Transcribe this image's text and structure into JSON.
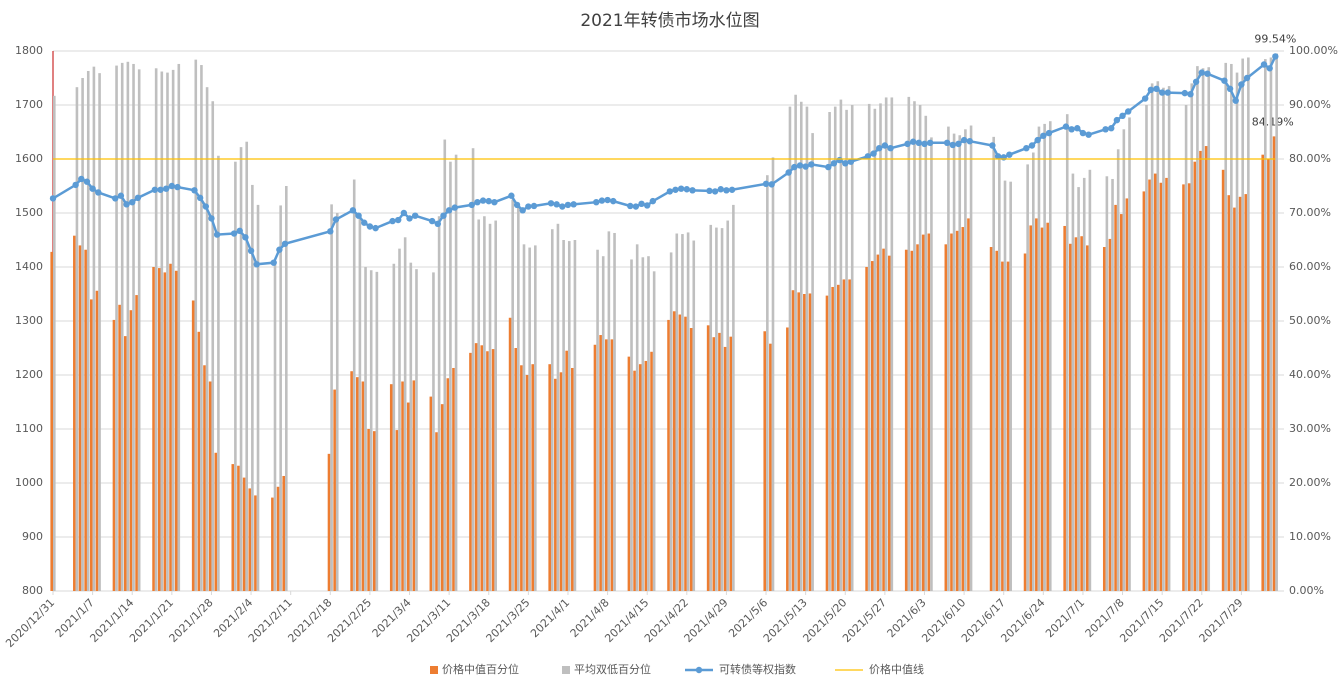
{
  "chart_data": {
    "type": "bar",
    "title": "2021年转债市场水位图",
    "x": [
      "2020/12/31",
      "2021/1/4",
      "2021/1/5",
      "2021/1/6",
      "2021/1/7",
      "2021/1/8",
      "2021/1/11",
      "2021/1/12",
      "2021/1/13",
      "2021/1/14",
      "2021/1/15",
      "2021/1/18",
      "2021/1/19",
      "2021/1/20",
      "2021/1/21",
      "2021/1/22",
      "2021/1/25",
      "2021/1/26",
      "2021/1/27",
      "2021/1/28",
      "2021/1/29",
      "2021/2/1",
      "2021/2/2",
      "2021/2/3",
      "2021/2/4",
      "2021/2/5",
      "2021/2/8",
      "2021/2/9",
      "2021/2/10",
      "2021/2/18",
      "2021/2/19",
      "2021/2/22",
      "2021/2/23",
      "2021/2/24",
      "2021/2/25",
      "2021/2/26",
      "2021/3/1",
      "2021/3/2",
      "2021/3/3",
      "2021/3/4",
      "2021/3/5",
      "2021/3/8",
      "2021/3/9",
      "2021/3/10",
      "2021/3/11",
      "2021/3/12",
      "2021/3/15",
      "2021/3/16",
      "2021/3/17",
      "2021/3/18",
      "2021/3/19",
      "2021/3/22",
      "2021/3/23",
      "2021/3/24",
      "2021/3/25",
      "2021/3/26",
      "2021/3/29",
      "2021/3/30",
      "2021/3/31",
      "2021/4/1",
      "2021/4/2",
      "2021/4/6",
      "2021/4/7",
      "2021/4/8",
      "2021/4/9",
      "2021/4/12",
      "2021/4/13",
      "2021/4/14",
      "2021/4/15",
      "2021/4/16",
      "2021/4/19",
      "2021/4/20",
      "2021/4/21",
      "2021/4/22",
      "2021/4/23",
      "2021/4/26",
      "2021/4/27",
      "2021/4/28",
      "2021/4/29",
      "2021/4/30",
      "2021/5/6",
      "2021/5/7",
      "2021/5/10",
      "2021/5/11",
      "2021/5/12",
      "2021/5/13",
      "2021/5/14",
      "2021/5/17",
      "2021/5/18",
      "2021/5/19",
      "2021/5/20",
      "2021/5/21",
      "2021/5/24",
      "2021/5/25",
      "2021/5/26",
      "2021/5/27",
      "2021/5/28",
      "2021/5/31",
      "2021/6/1",
      "2021/6/2",
      "2021/6/3",
      "2021/6/4",
      "2021/6/7",
      "2021/6/8",
      "2021/6/9",
      "2021/6/10",
      "2021/6/11",
      "2021/6/15",
      "2021/6/16",
      "2021/6/17",
      "2021/6/18",
      "2021/6/21",
      "2021/6/22",
      "2021/6/23",
      "2021/6/24",
      "2021/6/25",
      "2021/6/28",
      "2021/6/29",
      "2021/6/30",
      "2021/7/1",
      "2021/7/2",
      "2021/7/5",
      "2021/7/6",
      "2021/7/7",
      "2021/7/8",
      "2021/7/9",
      "2021/7/12",
      "2021/7/13",
      "2021/7/14",
      "2021/7/15",
      "2021/7/16",
      "2021/7/19",
      "2021/7/20",
      "2021/7/21",
      "2021/7/22",
      "2021/7/23",
      "2021/7/26",
      "2021/7/27",
      "2021/7/28",
      "2021/7/29",
      "2021/7/30",
      "2021/8/2",
      "2021/8/3",
      "2021/8/4"
    ],
    "xlim": [
      "2020/12/31",
      "2021/8/5"
    ],
    "xticks": [
      "2020/12/31",
      "2021/1/7",
      "2021/1/14",
      "2021/1/21",
      "2021/1/28",
      "2021/2/4",
      "2021/2/11",
      "2021/2/18",
      "2021/2/25",
      "2021/3/4",
      "2021/3/11",
      "2021/3/18",
      "2021/3/25",
      "2021/4/1",
      "2021/4/8",
      "2021/4/15",
      "2021/4/22",
      "2021/4/29",
      "2021/5/6",
      "2021/5/13",
      "2021/5/20",
      "2021/5/27",
      "2021/6/3",
      "2021/6/10",
      "2021/6/17",
      "2021/6/24",
      "2021/7/1",
      "2021/7/8",
      "2021/7/15",
      "2021/7/22",
      "2021/7/29"
    ],
    "ylim": [
      800,
      1800
    ],
    "yticks": [
      800,
      900,
      1000,
      1100,
      1200,
      1300,
      1400,
      1500,
      1600,
      1700,
      1800
    ],
    "y2lim": [
      0,
      100
    ],
    "y2ticks": [
      {
        "value": 0,
        "label": "0.00%"
      },
      {
        "value": 10,
        "label": "10.00%"
      },
      {
        "value": 20,
        "label": "20.00%"
      },
      {
        "value": 30,
        "label": "30.00%"
      },
      {
        "value": 40,
        "label": "40.00%"
      },
      {
        "value": 50,
        "label": "50.00%"
      },
      {
        "value": 60,
        "label": "60.00%"
      },
      {
        "value": 70,
        "label": "70.00%"
      },
      {
        "value": 80,
        "label": "80.00%"
      },
      {
        "value": 90,
        "label": "90.00%"
      },
      {
        "value": 100,
        "label": "100.00%"
      }
    ],
    "grid": true,
    "legend": "bottom",
    "series": [
      {
        "name": "价格中值百分位",
        "type": "bar",
        "axis": "y2",
        "color": "#ed7d31",
        "values": [
          62.8,
          65.8,
          64,
          63.2,
          54,
          55.6,
          50.2,
          53,
          47.2,
          52,
          54.8,
          60,
          59.8,
          59,
          60.6,
          59.3,
          53.8,
          48,
          41.8,
          38.8,
          25.6,
          23.5,
          23.2,
          21,
          19,
          17.7,
          17.3,
          19.3,
          21.3,
          25.4,
          37.3,
          40.7,
          39.6,
          38.8,
          30,
          29.6,
          38.3,
          29.8,
          38.8,
          34.9,
          39,
          36,
          29.4,
          34.6,
          39.4,
          41.3,
          44.1,
          45.9,
          45.5,
          44.4,
          44.8,
          50.6,
          45,
          41.8,
          40,
          42,
          42,
          39.3,
          40.5,
          44.5,
          41.3,
          45.6,
          47.4,
          46.6,
          46.6,
          43.4,
          40.8,
          42,
          42.6,
          44.3,
          50.2,
          51.8,
          51.2,
          50.8,
          48.7,
          49.2,
          47,
          47.8,
          45.2,
          47.1,
          48.1,
          45.8,
          48.8,
          55.7,
          55.3,
          55,
          55.1,
          54.7,
          56.3,
          56.7,
          57.7,
          57.7,
          60,
          61.1,
          62.3,
          63.4,
          62.1,
          63.2,
          63,
          64.2,
          66,
          66.2,
          64.2,
          66.2,
          66.7,
          67.4,
          69,
          63.7,
          63,
          61,
          61,
          62.5,
          67.7,
          69,
          67.3,
          68.2,
          67.6,
          64.3,
          65.5,
          65.7,
          64,
          63.7,
          65.2,
          71.5,
          69.8,
          72.7,
          74,
          76.2,
          77.3,
          75.6,
          76.5,
          75.3,
          75.5,
          79.5,
          81.5,
          82.4,
          78,
          73.3,
          71,
          73,
          73.5,
          80.8,
          80,
          84.19
        ],
        "value_labels": {
          "143": "84.19%"
        }
      },
      {
        "name": "平均双低百分位",
        "type": "bar",
        "axis": "y2",
        "color": "#bfbfbf",
        "values": [
          91.7,
          93.3,
          95,
          96.3,
          97.1,
          95.9,
          97.3,
          97.8,
          98,
          97.6,
          96.6,
          96.8,
          96.2,
          96,
          96.5,
          97.6,
          98.4,
          97.4,
          93.3,
          90.7,
          80.6,
          79.5,
          82.2,
          83.2,
          75.2,
          71.5,
          60.4,
          71.4,
          75,
          71.6,
          70,
          76.2,
          69.5,
          60,
          59.4,
          59.1,
          60.6,
          63.4,
          65.5,
          60.8,
          59.6,
          59,
          69.4,
          83.6,
          79.5,
          80.8,
          82,
          68.8,
          69.4,
          68,
          68.6,
          72.5,
          71,
          64.2,
          63.6,
          64,
          67,
          68,
          65,
          64.8,
          65,
          63.2,
          62,
          66.6,
          66.3,
          61.4,
          64.2,
          61.8,
          62,
          59.2,
          62.7,
          66.2,
          66.1,
          66.4,
          64.9,
          67.8,
          67.3,
          67.2,
          68.6,
          71.5,
          77,
          80.3,
          89.7,
          91.9,
          90.6,
          89.7,
          84.8,
          88.7,
          89.7,
          91,
          89.1,
          90,
          90.2,
          89.3,
          90.3,
          91.4,
          91.4,
          91.5,
          90.7,
          90,
          88,
          84,
          86,
          84.7,
          84.4,
          85.5,
          86.2,
          84.1,
          80,
          76,
          75.8,
          79,
          81.2,
          86,
          86.5,
          87,
          88.3,
          77.3,
          74.8,
          76.5,
          78,
          76.8,
          76.3,
          81.8,
          85.5,
          87.7,
          90,
          94,
          94.4,
          93.2,
          93.5,
          90,
          94,
          97.2,
          96.8,
          97,
          97.8,
          97.6,
          96,
          98.6,
          98.8,
          98.5,
          98.8,
          99.54
        ],
        "value_labels": {
          "143": "99.54%"
        }
      },
      {
        "name": "可转债等权指数",
        "type": "line",
        "color": "#5b9bd5",
        "values": [
          1527,
          1552,
          1563,
          1558,
          1545,
          1538,
          1527,
          1532,
          1516,
          1520,
          1528,
          1543,
          1543,
          1545,
          1550,
          1548,
          1542,
          1528,
          1512,
          1490,
          1460,
          1462,
          1467,
          1455,
          1430,
          1405,
          1408,
          1432,
          1443,
          1466,
          1488,
          1505,
          1495,
          1482,
          1475,
          1472,
          1485,
          1487,
          1500,
          1490,
          1495,
          1485,
          1480,
          1495,
          1505,
          1510,
          1515,
          1520,
          1523,
          1522,
          1520,
          1532,
          1515,
          1505,
          1512,
          1513,
          1518,
          1516,
          1512,
          1515,
          1516,
          1520,
          1523,
          1524,
          1522,
          1513,
          1512,
          1517,
          1514,
          1522,
          1540,
          1543,
          1545,
          1544,
          1542,
          1541,
          1540,
          1544,
          1542,
          1543,
          1554,
          1553,
          1575,
          1585,
          1588,
          1586,
          1590,
          1585,
          1592,
          1598,
          1592,
          1595,
          1605,
          1610,
          1620,
          1625,
          1620,
          1628,
          1632,
          1630,
          1628,
          1630,
          1630,
          1626,
          1628,
          1635,
          1633,
          1625,
          1605,
          1603,
          1608,
          1620,
          1625,
          1635,
          1643,
          1648,
          1660,
          1655,
          1657,
          1648,
          1645,
          1655,
          1657,
          1672,
          1680,
          1688,
          1712,
          1728,
          1730,
          1723,
          1723,
          1722,
          1720,
          1743,
          1760,
          1758,
          1745,
          1730,
          1708,
          1738,
          1750,
          1775,
          1768,
          1790
        ]
      },
      {
        "name": "价格中值线",
        "type": "line",
        "axis": "y2",
        "color": "#ffc000",
        "values": [
          80,
          80,
          80,
          80,
          80,
          80,
          80,
          80,
          80,
          80,
          80,
          80,
          80,
          80,
          80,
          80,
          80,
          80,
          80,
          80,
          80,
          80,
          80,
          80,
          80,
          80,
          80,
          80,
          80,
          80,
          80,
          80,
          80,
          80,
          80,
          80,
          80,
          80,
          80,
          80,
          80,
          80,
          80,
          80,
          80,
          80,
          80,
          80,
          80,
          80,
          80,
          80,
          80,
          80,
          80,
          80,
          80,
          80,
          80,
          80,
          80,
          80,
          80,
          80,
          80,
          80,
          80,
          80,
          80,
          80,
          80,
          80,
          80,
          80,
          80,
          80,
          80,
          80,
          80,
          80,
          80,
          80,
          80,
          80,
          80,
          80,
          80,
          80,
          80,
          80,
          80,
          80,
          80,
          80,
          80,
          80,
          80,
          80,
          80,
          80,
          80,
          80,
          80,
          80,
          80,
          80,
          80,
          80,
          80,
          80,
          80,
          80,
          80,
          80,
          80,
          80,
          80,
          80,
          80,
          80,
          80,
          80,
          80,
          80,
          80,
          80,
          80,
          80,
          80,
          80,
          80,
          80,
          80,
          80,
          80,
          80,
          80,
          80,
          80,
          80,
          80,
          80,
          80,
          80
        ]
      }
    ]
  }
}
